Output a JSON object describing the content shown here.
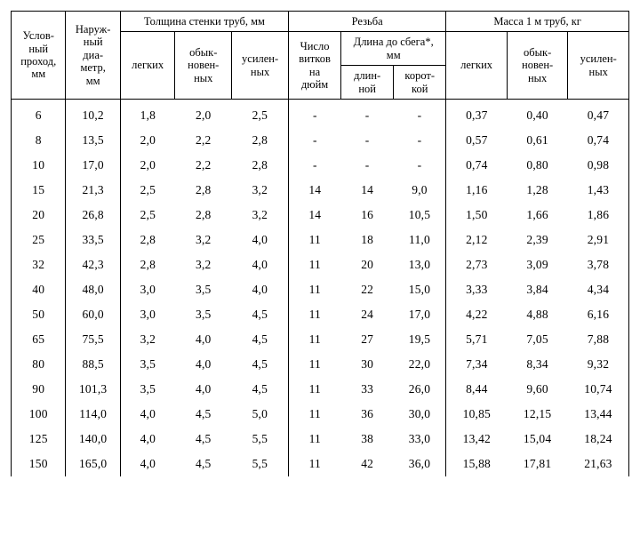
{
  "header": {
    "col_uslov": "Услов-\nный\nпроход,\nмм",
    "col_naruzh": "Наруж-\nный\nдиа-\nметр,\nмм",
    "grp_tolshina": "Толщина стенки труб, мм",
    "grp_rezba": "Резьба",
    "grp_massa": "Масса 1 м труб, кг",
    "sub_legkih": "легких",
    "sub_obyk": "обык-\nновен-\nных",
    "sub_usilen": "усилен-\nных",
    "sub_chislo": "Число\nвитков\nна\nдюйм",
    "sub_dlina_sbeg": "Длина до сбега*,\nмм",
    "sub_dlinnoj": "длин-\nной",
    "sub_korotkoj": "корот-\nкой"
  },
  "rows": [
    {
      "d": "6",
      "od": "10,2",
      "t1": "1,8",
      "t2": "2,0",
      "t3": "2,5",
      "tp": "-",
      "ll": "-",
      "ls": "-",
      "m1": "0,37",
      "m2": "0,40",
      "m3": "0,47"
    },
    {
      "d": "8",
      "od": "13,5",
      "t1": "2,0",
      "t2": "2,2",
      "t3": "2,8",
      "tp": "-",
      "ll": "-",
      "ls": "-",
      "m1": "0,57",
      "m2": "0,61",
      "m3": "0,74"
    },
    {
      "d": "10",
      "od": "17,0",
      "t1": "2,0",
      "t2": "2,2",
      "t3": "2,8",
      "tp": "-",
      "ll": "-",
      "ls": "-",
      "m1": "0,74",
      "m2": "0,80",
      "m3": "0,98"
    },
    {
      "d": "15",
      "od": "21,3",
      "t1": "2,5",
      "t2": "2,8",
      "t3": "3,2",
      "tp": "14",
      "ll": "14",
      "ls": "9,0",
      "m1": "1,16",
      "m2": "1,28",
      "m3": "1,43"
    },
    {
      "d": "20",
      "od": "26,8",
      "t1": "2,5",
      "t2": "2,8",
      "t3": "3,2",
      "tp": "14",
      "ll": "16",
      "ls": "10,5",
      "m1": "1,50",
      "m2": "1,66",
      "m3": "1,86"
    },
    {
      "d": "25",
      "od": "33,5",
      "t1": "2,8",
      "t2": "3,2",
      "t3": "4,0",
      "tp": "11",
      "ll": "18",
      "ls": "11,0",
      "m1": "2,12",
      "m2": "2,39",
      "m3": "2,91"
    },
    {
      "d": "32",
      "od": "42,3",
      "t1": "2,8",
      "t2": "3,2",
      "t3": "4,0",
      "tp": "11",
      "ll": "20",
      "ls": "13,0",
      "m1": "2,73",
      "m2": "3,09",
      "m3": "3,78"
    },
    {
      "d": "40",
      "od": "48,0",
      "t1": "3,0",
      "t2": "3,5",
      "t3": "4,0",
      "tp": "11",
      "ll": "22",
      "ls": "15,0",
      "m1": "3,33",
      "m2": "3,84",
      "m3": "4,34"
    },
    {
      "d": "50",
      "od": "60,0",
      "t1": "3,0",
      "t2": "3,5",
      "t3": "4,5",
      "tp": "11",
      "ll": "24",
      "ls": "17,0",
      "m1": "4,22",
      "m2": "4,88",
      "m3": "6,16"
    },
    {
      "d": "65",
      "od": "75,5",
      "t1": "3,2",
      "t2": "4,0",
      "t3": "4,5",
      "tp": "11",
      "ll": "27",
      "ls": "19,5",
      "m1": "5,71",
      "m2": "7,05",
      "m3": "7,88"
    },
    {
      "d": "80",
      "od": "88,5",
      "t1": "3,5",
      "t2": "4,0",
      "t3": "4,5",
      "tp": "11",
      "ll": "30",
      "ls": "22,0",
      "m1": "7,34",
      "m2": "8,34",
      "m3": "9,32"
    },
    {
      "d": "90",
      "od": "101,3",
      "t1": "3,5",
      "t2": "4,0",
      "t3": "4,5",
      "tp": "11",
      "ll": "33",
      "ls": "26,0",
      "m1": "8,44",
      "m2": "9,60",
      "m3": "10,74"
    },
    {
      "d": "100",
      "od": "114,0",
      "t1": "4,0",
      "t2": "4,5",
      "t3": "5,0",
      "tp": "11",
      "ll": "36",
      "ls": "30,0",
      "m1": "10,85",
      "m2": "12,15",
      "m3": "13,44"
    },
    {
      "d": "125",
      "od": "140,0",
      "t1": "4,0",
      "t2": "4,5",
      "t3": "5,5",
      "tp": "11",
      "ll": "38",
      "ls": "33,0",
      "m1": "13,42",
      "m2": "15,04",
      "m3": "18,24"
    },
    {
      "d": "150",
      "od": "165,0",
      "t1": "4,0",
      "t2": "4,5",
      "t3": "5,5",
      "tp": "11",
      "ll": "42",
      "ls": "36,0",
      "m1": "15,88",
      "m2": "17,81",
      "m3": "21,63"
    }
  ]
}
